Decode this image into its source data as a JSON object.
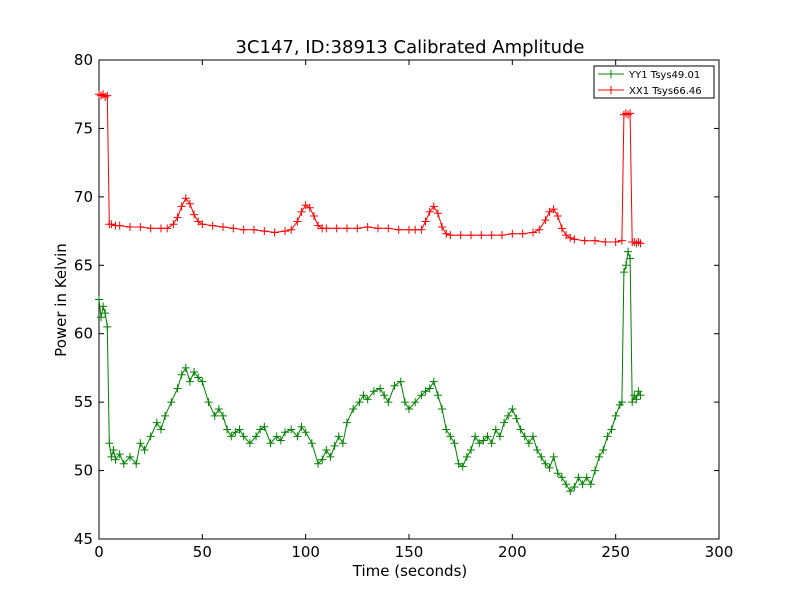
{
  "chart_data": {
    "type": "line",
    "title": "3C147, ID:38913 Calibrated Amplitude",
    "xlabel": "Time (seconds)",
    "ylabel": "Power in Kelvin",
    "xlim": [
      0,
      300
    ],
    "ylim": [
      45,
      80
    ],
    "xticks": [
      0,
      50,
      100,
      150,
      200,
      250,
      300
    ],
    "yticks": [
      45,
      50,
      55,
      60,
      65,
      70,
      75,
      80
    ],
    "grid": false,
    "legend_position": "top-right",
    "series": [
      {
        "name": "YY1 Tsys49.01",
        "color": "#008000",
        "marker": "plus",
        "x": [
          0,
          1,
          2,
          3,
          4,
          5,
          6,
          7,
          8,
          10,
          12,
          15,
          18,
          20,
          22,
          25,
          28,
          30,
          32,
          35,
          38,
          40,
          42,
          44,
          46,
          48,
          50,
          53,
          56,
          58,
          60,
          62,
          64,
          66,
          68,
          70,
          73,
          76,
          78,
          80,
          83,
          86,
          88,
          90,
          93,
          96,
          98,
          100,
          103,
          106,
          108,
          110,
          112,
          114,
          116,
          118,
          120,
          123,
          126,
          128,
          130,
          133,
          136,
          138,
          140,
          143,
          146,
          148,
          150,
          153,
          156,
          158,
          160,
          162,
          164,
          166,
          168,
          170,
          172,
          174,
          176,
          178,
          180,
          182,
          184,
          186,
          188,
          190,
          192,
          194,
          196,
          198,
          200,
          202,
          204,
          206,
          208,
          210,
          212,
          214,
          216,
          218,
          220,
          222,
          224,
          226,
          228,
          230,
          232,
          234,
          236,
          238,
          240,
          242,
          244,
          246,
          248,
          250,
          252,
          253,
          254,
          255,
          256,
          257,
          258,
          259,
          260,
          261,
          262
        ],
        "y": [
          62.5,
          61.2,
          62.0,
          61.5,
          60.5,
          52.0,
          51.0,
          51.5,
          50.8,
          51.2,
          50.5,
          51.0,
          50.5,
          52.0,
          51.5,
          52.5,
          53.5,
          53.0,
          54.0,
          55.0,
          56.0,
          57.0,
          57.5,
          56.5,
          57.2,
          56.8,
          56.5,
          55.0,
          54.0,
          54.5,
          54.0,
          53.0,
          52.5,
          52.8,
          53.0,
          52.5,
          52.0,
          52.5,
          53.0,
          53.2,
          52.0,
          52.5,
          52.2,
          52.8,
          53.0,
          52.5,
          53.2,
          52.8,
          52.0,
          50.5,
          50.8,
          51.5,
          51.0,
          51.8,
          52.5,
          52.0,
          53.5,
          54.5,
          55.0,
          55.5,
          55.2,
          55.8,
          56.0,
          55.5,
          55.0,
          56.2,
          56.5,
          55.0,
          54.5,
          55.0,
          55.5,
          55.8,
          56.0,
          56.5,
          55.5,
          54.5,
          53.0,
          52.5,
          52.0,
          50.5,
          50.3,
          51.0,
          51.5,
          52.5,
          52.0,
          52.2,
          52.5,
          52.0,
          53.0,
          52.5,
          53.5,
          54.0,
          54.5,
          53.8,
          53.0,
          52.5,
          52.0,
          52.5,
          51.5,
          51.0,
          50.5,
          50.2,
          51.0,
          49.8,
          49.5,
          49.0,
          48.5,
          48.8,
          49.5,
          49.0,
          49.5,
          49.0,
          50.0,
          51.0,
          51.5,
          52.5,
          53.0,
          54.0,
          54.8,
          55.0,
          64.5,
          65.0,
          66.0,
          65.5,
          55.0,
          55.5,
          55.2,
          55.8,
          55.5
        ],
        "x_dense_note": "",
        "y_range_note": ""
      },
      {
        "name": "XX1 Tsys66.46",
        "color": "#ff0000",
        "marker": "plus",
        "x": [
          0,
          1,
          2,
          3,
          4,
          5,
          6,
          8,
          10,
          15,
          20,
          25,
          30,
          33,
          36,
          38,
          40,
          42,
          44,
          46,
          48,
          50,
          55,
          60,
          65,
          70,
          75,
          80,
          85,
          90,
          93,
          96,
          98,
          100,
          102,
          104,
          106,
          108,
          110,
          115,
          120,
          125,
          130,
          135,
          140,
          145,
          150,
          153,
          156,
          158,
          160,
          162,
          164,
          166,
          168,
          170,
          175,
          180,
          185,
          190,
          195,
          200,
          205,
          210,
          213,
          216,
          218,
          220,
          222,
          224,
          226,
          228,
          230,
          235,
          240,
          245,
          250,
          253,
          254,
          255,
          256,
          257,
          258,
          259,
          260,
          261,
          262
        ],
        "y": [
          77.5,
          77.4,
          77.5,
          77.3,
          77.4,
          68.0,
          68.0,
          67.9,
          67.9,
          67.8,
          67.8,
          67.7,
          67.7,
          67.7,
          68.0,
          68.5,
          69.3,
          69.9,
          69.5,
          68.7,
          68.2,
          68.0,
          67.9,
          67.8,
          67.7,
          67.6,
          67.6,
          67.5,
          67.4,
          67.5,
          67.6,
          68.2,
          68.9,
          69.4,
          69.2,
          68.6,
          67.9,
          67.7,
          67.7,
          67.7,
          67.7,
          67.7,
          67.8,
          67.7,
          67.7,
          67.6,
          67.6,
          67.6,
          67.6,
          68.2,
          68.9,
          69.3,
          68.8,
          67.8,
          67.3,
          67.2,
          67.2,
          67.2,
          67.2,
          67.2,
          67.2,
          67.3,
          67.3,
          67.4,
          67.6,
          68.3,
          68.9,
          69.1,
          68.6,
          67.7,
          67.2,
          67.0,
          66.9,
          66.8,
          66.8,
          66.7,
          66.7,
          66.8,
          76.0,
          76.1,
          76.0,
          76.1,
          66.7,
          66.7,
          66.6,
          66.7,
          66.6
        ],
        "x_dense_note": "",
        "y_range_note": ""
      }
    ]
  }
}
